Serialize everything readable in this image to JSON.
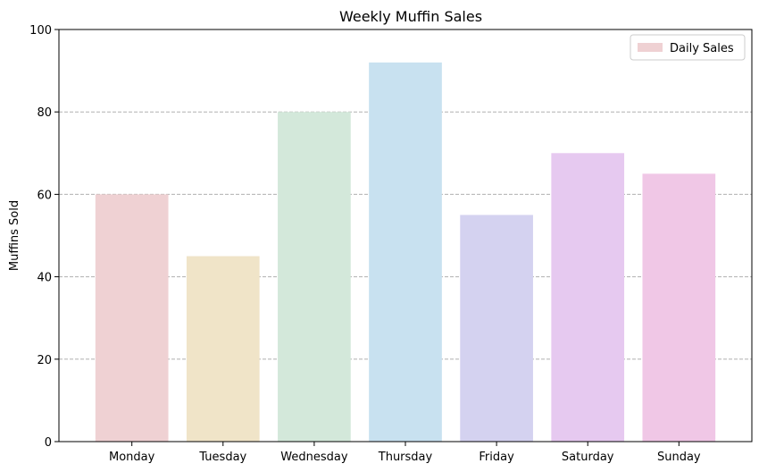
{
  "chart_data": {
    "type": "bar",
    "title": "Weekly Muffin Sales",
    "xlabel": "",
    "ylabel": "Muffins Sold",
    "categories": [
      "Monday",
      "Tuesday",
      "Wednesday",
      "Thursday",
      "Friday",
      "Saturday",
      "Sunday"
    ],
    "series": [
      {
        "name": "Daily Sales",
        "values": [
          60,
          45,
          80,
          92,
          55,
          70,
          65
        ]
      }
    ],
    "bar_colors": [
      "#efd1d3",
      "#f0e4c8",
      "#d3e8da",
      "#c8e1f0",
      "#d4d2f0",
      "#e6c9f0",
      "#f0c7e6"
    ],
    "ylim": [
      0,
      100
    ],
    "yticks": [
      0,
      20,
      40,
      60,
      80,
      100
    ],
    "grid": "y-dashed",
    "legend_position": "top-right"
  }
}
